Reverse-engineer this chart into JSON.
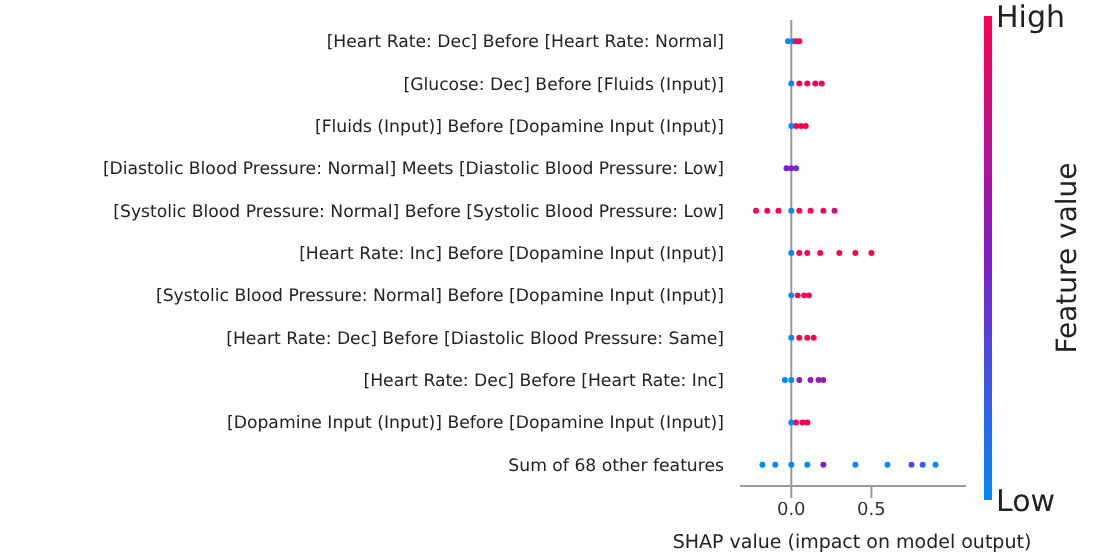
{
  "chart_data": {
    "type": "scatter",
    "orientation": "horizontal",
    "xlabel": "SHAP value (impact on model output)",
    "clabel": "Feature value",
    "categories": [
      "[Heart Rate: Dec] Before [Heart Rate: Normal]",
      "[Glucose: Dec] Before [Fluids (Input)]",
      "[Fluids (Input)] Before [Dopamine Input (Input)]",
      "[Diastolic Blood Pressure: Normal] Meets [Diastolic Blood Pressure: Low]",
      "[Systolic Blood Pressure: Normal] Before [Systolic Blood Pressure: Low]",
      "[Heart Rate: Inc] Before [Dopamine Input (Input)]",
      "[Systolic Blood Pressure: Normal] Before [Dopamine Input (Input)]",
      "[Heart Rate: Dec] Before [Diastolic Blood Pressure: Same]",
      "[Heart Rate: Dec] Before [Heart Rate: Inc]",
      "[Dopamine Input (Input)] Before [Dopamine Input (Input)]",
      "Sum of 68 other features"
    ],
    "series": [
      {
        "x": [
          "[Heart Rate: Dec] Before [Heart Rate: Normal]",
          "[Heart Rate: Dec] Before [Heart Rate: Normal]",
          "[Heart Rate: Dec] Before [Heart Rate: Normal]",
          "[Heart Rate: Dec] Before [Heart Rate: Normal]",
          "[Glucose: Dec] Before [Fluids (Input)]",
          "[Glucose: Dec] Before [Fluids (Input)]",
          "[Glucose: Dec] Before [Fluids (Input)]",
          "[Glucose: Dec] Before [Fluids (Input)]",
          "[Glucose: Dec] Before [Fluids (Input)]",
          "[Fluids (Input)] Before [Dopamine Input (Input)]",
          "[Fluids (Input)] Before [Dopamine Input (Input)]",
          "[Fluids (Input)] Before [Dopamine Input (Input)]",
          "[Fluids (Input)] Before [Dopamine Input (Input)]",
          "[Diastolic Blood Pressure: Normal] Meets [Diastolic Blood Pressure: Low]",
          "[Diastolic Blood Pressure: Normal] Meets [Diastolic Blood Pressure: Low]",
          "[Diastolic Blood Pressure: Normal] Meets [Diastolic Blood Pressure: Low]",
          "[Systolic Blood Pressure: Normal] Before [Systolic Blood Pressure: Low]",
          "[Systolic Blood Pressure: Normal] Before [Systolic Blood Pressure: Low]",
          "[Systolic Blood Pressure: Normal] Before [Systolic Blood Pressure: Low]",
          "[Systolic Blood Pressure: Normal] Before [Systolic Blood Pressure: Low]",
          "[Systolic Blood Pressure: Normal] Before [Systolic Blood Pressure: Low]",
          "[Systolic Blood Pressure: Normal] Before [Systolic Blood Pressure: Low]",
          "[Systolic Blood Pressure: Normal] Before [Systolic Blood Pressure: Low]",
          "[Systolic Blood Pressure: Normal] Before [Systolic Blood Pressure: Low]",
          "[Heart Rate: Inc] Before [Dopamine Input (Input)]",
          "[Heart Rate: Inc] Before [Dopamine Input (Input)]",
          "[Heart Rate: Inc] Before [Dopamine Input (Input)]",
          "[Heart Rate: Inc] Before [Dopamine Input (Input)]",
          "[Heart Rate: Inc] Before [Dopamine Input (Input)]",
          "[Heart Rate: Inc] Before [Dopamine Input (Input)]",
          "[Heart Rate: Inc] Before [Dopamine Input (Input)]",
          "[Systolic Blood Pressure: Normal] Before [Dopamine Input (Input)]",
          "[Systolic Blood Pressure: Normal] Before [Dopamine Input (Input)]",
          "[Systolic Blood Pressure: Normal] Before [Dopamine Input (Input)]",
          "[Systolic Blood Pressure: Normal] Before [Dopamine Input (Input)]",
          "[Heart Rate: Dec] Before [Diastolic Blood Pressure: Same]",
          "[Heart Rate: Dec] Before [Diastolic Blood Pressure: Same]",
          "[Heart Rate: Dec] Before [Diastolic Blood Pressure: Same]",
          "[Heart Rate: Dec] Before [Diastolic Blood Pressure: Same]",
          "[Heart Rate: Dec] Before [Heart Rate: Inc]",
          "[Heart Rate: Dec] Before [Heart Rate: Inc]",
          "[Heart Rate: Dec] Before [Heart Rate: Inc]",
          "[Heart Rate: Dec] Before [Heart Rate: Inc]",
          "[Heart Rate: Dec] Before [Heart Rate: Inc]",
          "[Heart Rate: Dec] Before [Heart Rate: Inc]",
          "[Dopamine Input (Input)] Before [Dopamine Input (Input)]",
          "[Dopamine Input (Input)] Before [Dopamine Input (Input)]",
          "[Dopamine Input (Input)] Before [Dopamine Input (Input)]",
          "[Dopamine Input (Input)] Before [Dopamine Input (Input)]",
          "Sum of 68 other features",
          "Sum of 68 other features",
          "Sum of 68 other features",
          "Sum of 68 other features",
          "Sum of 68 other features",
          "Sum of 68 other features",
          "Sum of 68 other features",
          "Sum of 68 other features",
          "Sum of 68 other features",
          "Sum of 68 other features"
        ],
        "values": [
          -0.02,
          0.01,
          0.03,
          0.05,
          0.0,
          0.05,
          0.1,
          0.15,
          0.19,
          0.0,
          0.03,
          0.06,
          0.09,
          -0.03,
          0.0,
          0.03,
          -0.22,
          -0.15,
          -0.08,
          0.0,
          0.05,
          0.12,
          0.2,
          0.27,
          0.0,
          0.05,
          0.1,
          0.18,
          0.3,
          0.4,
          0.5,
          0.0,
          0.04,
          0.08,
          0.11,
          0.0,
          0.05,
          0.1,
          0.14,
          -0.04,
          0.0,
          0.05,
          0.12,
          0.17,
          0.2,
          0.0,
          0.03,
          0.07,
          0.1,
          -0.18,
          -0.1,
          0.0,
          0.1,
          0.2,
          0.4,
          0.6,
          0.75,
          0.82,
          0.9
        ],
        "cvalues": [
          0,
          0,
          1,
          1,
          0,
          1,
          1,
          1,
          1,
          0,
          1,
          1,
          1,
          0.5,
          0.5,
          0.4,
          1,
          1,
          1,
          0,
          1,
          1,
          1,
          0.8,
          0,
          1,
          1,
          1,
          1,
          1,
          1,
          0,
          1,
          1,
          1,
          0,
          1,
          1,
          1,
          0,
          0,
          0.6,
          0.6,
          0.6,
          0.6,
          0,
          1,
          1,
          1,
          0,
          0,
          0,
          0,
          0.5,
          0,
          0,
          0.3,
          0.2,
          0
        ]
      }
    ],
    "xlim": [
      -0.32,
      1.09
    ],
    "xticks": [
      {
        "value": 0,
        "label": "0.0"
      },
      {
        "value": 0.5,
        "label": "0.5"
      }
    ],
    "clim": [
      0,
      1
    ],
    "cticks": [
      {
        "value": 0,
        "label": "Low"
      },
      {
        "value": 1,
        "label": "High"
      }
    ],
    "ref_lines": [
      {
        "axis": "x",
        "value": 0,
        "color": "#999999"
      }
    ],
    "marker": "circle"
  }
}
